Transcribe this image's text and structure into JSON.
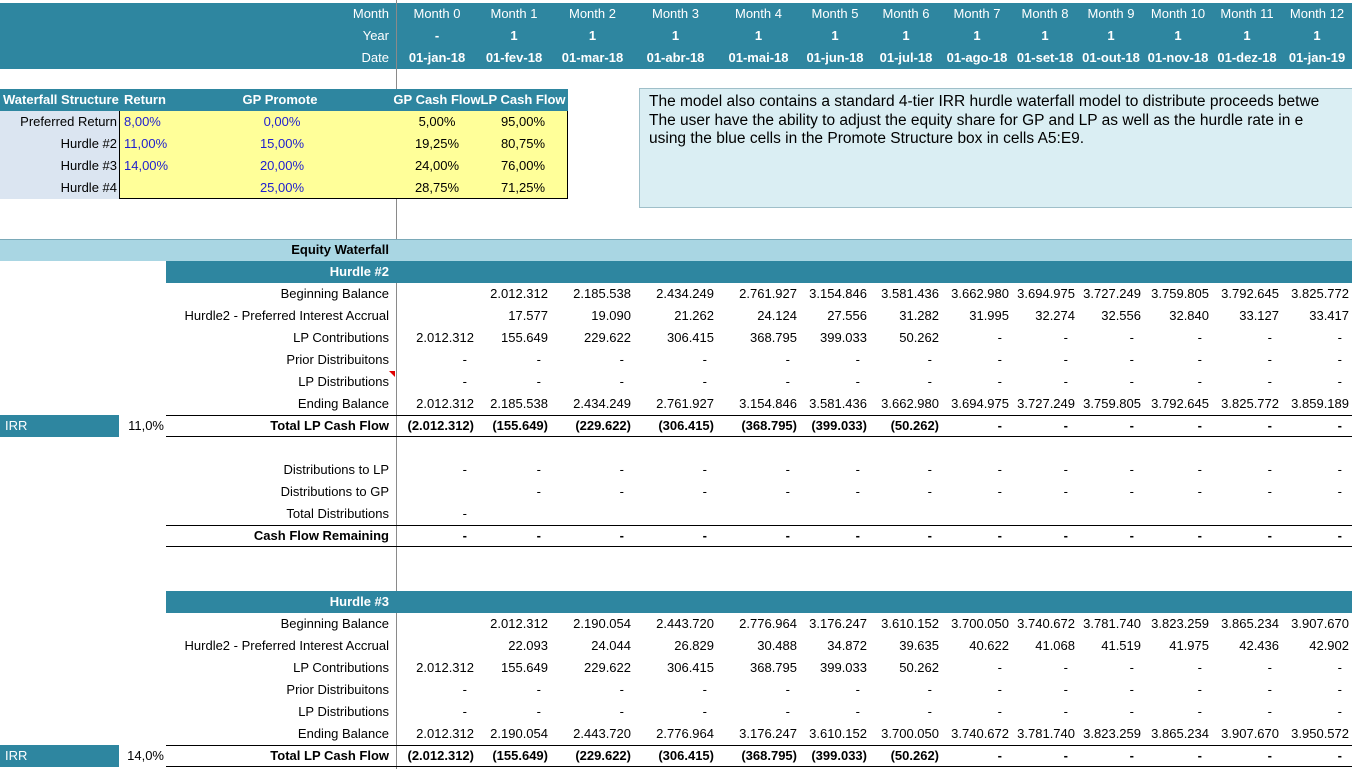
{
  "header": {
    "label_month": "Month",
    "label_year": "Year",
    "label_date": "Date",
    "months": [
      "Month 0",
      "Month 1",
      "Month 2",
      "Month 3",
      "Month 4",
      "Month 5",
      "Month 6",
      "Month 7",
      "Month 8",
      "Month 9",
      "Month 10",
      "Month 11",
      "Month 12"
    ],
    "years": [
      "-",
      "1",
      "1",
      "1",
      "1",
      "1",
      "1",
      "1",
      "1",
      "1",
      "1",
      "1",
      "1"
    ],
    "dates": [
      "01-jan-18",
      "01-fev-18",
      "01-mar-18",
      "01-abr-18",
      "01-mai-18",
      "01-jun-18",
      "01-jul-18",
      "01-ago-18",
      "01-set-18",
      "01-out-18",
      "01-nov-18",
      "01-dez-18",
      "01-jan-19"
    ]
  },
  "structure": {
    "headers": [
      "Waterfall Structure",
      "Return",
      "GP Promote",
      "GP Cash Flow",
      "LP Cash Flow"
    ],
    "rows": [
      {
        "label": "Preferred Return",
        "ret": "8,00%",
        "promote": "0,00%",
        "gp": "5,00%",
        "lp": "95,00%"
      },
      {
        "label": "Hurdle #2",
        "ret": "11,00%",
        "promote": "15,00%",
        "gp": "19,25%",
        "lp": "80,75%"
      },
      {
        "label": "Hurdle #3",
        "ret": "14,00%",
        "promote": "20,00%",
        "gp": "24,00%",
        "lp": "76,00%"
      },
      {
        "label": "Hurdle #4",
        "ret": "",
        "promote": "25,00%",
        "gp": "28,75%",
        "lp": "71,25%"
      }
    ]
  },
  "note": {
    "lines": [
      "The model also contains a standard 4-tier IRR hurdle waterfall model to distribute proceeds betwe",
      "The user have the ability to adjust the equity share for GP and LP as well as the hurdle rate in e",
      "using the blue cells in the Promote Structure box in cells A5:E9."
    ]
  },
  "equity_waterfall": {
    "title": "Equity Waterfall"
  },
  "hurdle2": {
    "title": "Hurdle #2",
    "irr_label": "IRR",
    "irr_value": "11,0%",
    "rows": [
      {
        "label": "Beginning Balance",
        "values": [
          "",
          "2.012.312",
          "2.185.538",
          "2.434.249",
          "2.761.927",
          "3.154.846",
          "3.581.436",
          "3.662.980",
          "3.694.975",
          "3.727.249",
          "3.759.805",
          "3.792.645",
          "3.825.772"
        ]
      },
      {
        "label": "Hurdle2 - Preferred Interest Accrual",
        "values": [
          "",
          "17.577",
          "19.090",
          "21.262",
          "24.124",
          "27.556",
          "31.282",
          "31.995",
          "32.274",
          "32.556",
          "32.840",
          "33.127",
          "33.417"
        ]
      },
      {
        "label": "LP Contributions",
        "values": [
          "2.012.312",
          "155.649",
          "229.622",
          "306.415",
          "368.795",
          "399.033",
          "50.262",
          "-",
          "-",
          "-",
          "-",
          "-",
          "-"
        ]
      },
      {
        "label": "Prior Distribuitons",
        "values": [
          "-",
          "-",
          "-",
          "-",
          "-",
          "-",
          "-",
          "-",
          "-",
          "-",
          "-",
          "-",
          "-"
        ]
      },
      {
        "label": "LP Distributions",
        "values": [
          "-",
          "-",
          "-",
          "-",
          "-",
          "-",
          "-",
          "-",
          "-",
          "-",
          "-",
          "-",
          "-"
        ]
      },
      {
        "label": "Ending Balance",
        "values": [
          "2.012.312",
          "2.185.538",
          "2.434.249",
          "2.761.927",
          "3.154.846",
          "3.581.436",
          "3.662.980",
          "3.694.975",
          "3.727.249",
          "3.759.805",
          "3.792.645",
          "3.825.772",
          "3.859.189"
        ]
      },
      {
        "label": "Total LP Cash Flow",
        "values": [
          "(2.012.312)",
          "(155.649)",
          "(229.622)",
          "(306.415)",
          "(368.795)",
          "(399.033)",
          "(50.262)",
          "-",
          "-",
          "-",
          "-",
          "-",
          "-"
        ]
      }
    ],
    "dist_rows": [
      {
        "label": "Distributions to LP",
        "values": [
          "-",
          "-",
          "-",
          "-",
          "-",
          "-",
          "-",
          "-",
          "-",
          "-",
          "-",
          "-",
          "-"
        ]
      },
      {
        "label": "Distributions to GP",
        "values": [
          "",
          "-",
          "-",
          "-",
          "-",
          "-",
          "-",
          "-",
          "-",
          "-",
          "-",
          "-",
          "-"
        ]
      },
      {
        "label": "Total Distributions",
        "values": [
          "-",
          "",
          "",
          "",
          "",
          "",
          "",
          "",
          "",
          "",
          "",
          "",
          ""
        ]
      },
      {
        "label": "Cash Flow Remaining",
        "values": [
          "-",
          "-",
          "-",
          "-",
          "-",
          "-",
          "-",
          "-",
          "-",
          "-",
          "-",
          "-",
          "-"
        ]
      }
    ]
  },
  "hurdle3": {
    "title": "Hurdle #3",
    "irr_label": "IRR",
    "irr_value": "14,0%",
    "rows": [
      {
        "label": "Beginning Balance",
        "values": [
          "",
          "2.012.312",
          "2.190.054",
          "2.443.720",
          "2.776.964",
          "3.176.247",
          "3.610.152",
          "3.700.050",
          "3.740.672",
          "3.781.740",
          "3.823.259",
          "3.865.234",
          "3.907.670"
        ]
      },
      {
        "label": "Hurdle2 - Preferred Interest Accrual",
        "values": [
          "",
          "22.093",
          "24.044",
          "26.829",
          "30.488",
          "34.872",
          "39.635",
          "40.622",
          "41.068",
          "41.519",
          "41.975",
          "42.436",
          "42.902"
        ]
      },
      {
        "label": "LP Contributions",
        "values": [
          "2.012.312",
          "155.649",
          "229.622",
          "306.415",
          "368.795",
          "399.033",
          "50.262",
          "-",
          "-",
          "-",
          "-",
          "-",
          "-"
        ]
      },
      {
        "label": "Prior Distribuitons",
        "values": [
          "-",
          "-",
          "-",
          "-",
          "-",
          "-",
          "-",
          "-",
          "-",
          "-",
          "-",
          "-",
          "-"
        ]
      },
      {
        "label": "LP Distributions",
        "values": [
          "-",
          "-",
          "-",
          "-",
          "-",
          "-",
          "-",
          "-",
          "-",
          "-",
          "-",
          "-",
          "-"
        ]
      },
      {
        "label": "Ending Balance",
        "values": [
          "2.012.312",
          "2.190.054",
          "2.443.720",
          "2.776.964",
          "3.176.247",
          "3.610.152",
          "3.700.050",
          "3.740.672",
          "3.781.740",
          "3.823.259",
          "3.865.234",
          "3.907.670",
          "3.950.572"
        ]
      },
      {
        "label": "Total LP Cash Flow",
        "values": [
          "(2.012.312)",
          "(155.649)",
          "(229.622)",
          "(306.415)",
          "(368.795)",
          "(399.033)",
          "(50.262)",
          "-",
          "-",
          "-",
          "-",
          "-",
          "-"
        ]
      }
    ]
  }
}
